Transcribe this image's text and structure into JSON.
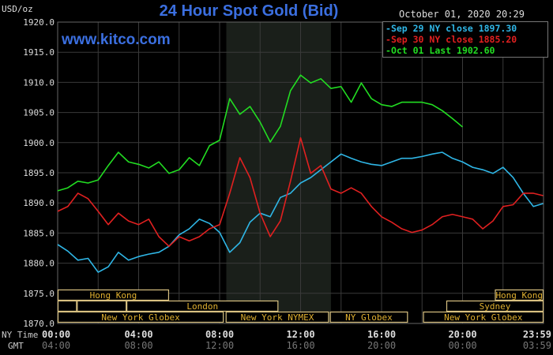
{
  "chart_data": {
    "type": "line",
    "title": "24 Hour Spot Gold (Bid)",
    "brand": "www.kitco.com",
    "ylabel": "USD/oz",
    "timestamp": "October 01, 2020 20:29",
    "ylim": [
      1870,
      1920
    ],
    "yticks": [
      "1920.0",
      "1915.0",
      "1910.0",
      "1905.0",
      "1900.0",
      "1895.0",
      "1890.0",
      "1885.0",
      "1880.0",
      "1875.0",
      "1870.0"
    ],
    "x_axis_label_ny": "NY Time",
    "x_axis_label_gmt": "GMT",
    "xticks_ny": [
      "00:00",
      "04:00",
      "08:00",
      "12:00",
      "16:00",
      "20:00",
      "23:59"
    ],
    "xticks_gmt": [
      "04:00",
      "08:00",
      "12:00",
      "16:00",
      "20:00",
      "00:00",
      "03:59"
    ],
    "xticks_hours": [
      0,
      4,
      8,
      12,
      16,
      20,
      23.98
    ],
    "grid": true,
    "highlight_hours": [
      8.33,
      13.5
    ],
    "legend": [
      "Sep 29 NY close 1897.30",
      "Sep 30 NY close 1885.20",
      "Oct 01 Last 1902.60"
    ],
    "legend_position": "top-right",
    "series": [
      {
        "name": "Sep 29 NY close 1897.30",
        "color": "#2fb6e6",
        "x_step_hours": 0.5,
        "values": [
          1883.1,
          1882.0,
          1880.5,
          1880.8,
          1878.5,
          1879.4,
          1881.8,
          1880.5,
          1881.1,
          1881.5,
          1881.8,
          1882.8,
          1884.7,
          1885.7,
          1887.3,
          1886.6,
          1885.1,
          1881.8,
          1883.4,
          1886.8,
          1888.3,
          1887.7,
          1890.9,
          1891.6,
          1893.3,
          1894.2,
          1895.5,
          1896.8,
          1898.1,
          1897.4,
          1896.8,
          1896.4,
          1896.2,
          1896.8,
          1897.4,
          1897.4,
          1897.7,
          1898.1,
          1898.4,
          1897.4,
          1896.8,
          1895.9,
          1895.5,
          1894.9,
          1895.9,
          1894.2,
          1891.6,
          1889.4,
          1889.9
        ]
      },
      {
        "name": "Sep 30 NY close 1885.20",
        "color": "#e02020",
        "x_step_hours": 0.5,
        "values": [
          1888.6,
          1889.4,
          1891.6,
          1890.7,
          1888.6,
          1886.4,
          1888.3,
          1887.0,
          1886.4,
          1887.3,
          1884.4,
          1882.8,
          1884.4,
          1883.7,
          1884.4,
          1885.7,
          1886.4,
          1891.6,
          1897.5,
          1894.2,
          1888.3,
          1884.4,
          1887.0,
          1893.6,
          1900.8,
          1894.9,
          1896.2,
          1892.3,
          1891.6,
          1892.5,
          1891.6,
          1889.4,
          1887.7,
          1886.8,
          1885.7,
          1885.1,
          1885.5,
          1886.4,
          1887.7,
          1888.1,
          1887.7,
          1887.3,
          1885.7,
          1887.0,
          1889.4,
          1889.7,
          1891.6,
          1891.6,
          1891.2
        ]
      },
      {
        "name": "Oct 01 Last 1902.60",
        "color": "#22dd22",
        "x_step_hours": 0.5,
        "values": [
          1892.0,
          1892.5,
          1893.6,
          1893.3,
          1893.8,
          1896.2,
          1898.4,
          1896.8,
          1896.4,
          1895.8,
          1896.8,
          1894.9,
          1895.5,
          1897.5,
          1896.2,
          1899.5,
          1900.4,
          1907.3,
          1904.7,
          1906.0,
          1903.4,
          1900.1,
          1902.7,
          1908.6,
          1911.2,
          1909.9,
          1910.6,
          1909.0,
          1909.3,
          1906.7,
          1909.9,
          1907.3,
          1906.3,
          1906.0,
          1906.7,
          1906.7,
          1906.7,
          1906.3,
          1905.3,
          1904.0,
          1902.6
        ]
      }
    ],
    "sessions": [
      {
        "label": "Hong Kong",
        "row": 0,
        "start": 0,
        "end": 5.5
      },
      {
        "label": "Hong Kong",
        "row": 0,
        "start": 21.6,
        "end": 24
      },
      {
        "label": "",
        "row": 1,
        "start": 0,
        "end": 0.95
      },
      {
        "label": "",
        "row": 1,
        "start": 0.95,
        "end": 3.4
      },
      {
        "label": "London",
        "row": 1,
        "start": 3.4,
        "end": 10.9
      },
      {
        "label": "Sydney",
        "row": 1,
        "start": 19.2,
        "end": 24
      },
      {
        "label": "New York Globex",
        "row": 2,
        "start": 0,
        "end": 8.2
      },
      {
        "label": "New York NYMEX",
        "row": 2,
        "start": 8.3,
        "end": 13.4
      },
      {
        "label": "NY Globex",
        "row": 2,
        "start": 13.45,
        "end": 17.3
      },
      {
        "label": "New York Globex",
        "row": 2,
        "start": 18.05,
        "end": 24
      }
    ],
    "session_color": "#d8c080"
  }
}
